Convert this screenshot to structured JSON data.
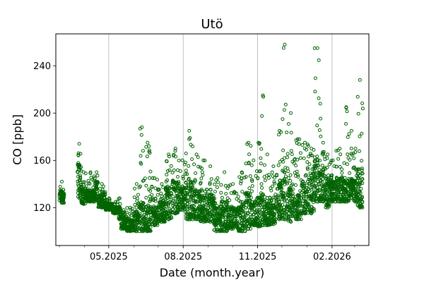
{
  "chart_data": {
    "type": "scatter",
    "title": "Utö",
    "xlabel": "Date (month.year)",
    "ylabel": "CO [ppb]",
    "x_units": "days since 01.03.2025",
    "xlim": [
      -4.4,
      382.5
    ],
    "ylim": [
      88,
      267
    ],
    "grid": "vertical lines at major x ticks",
    "marker_color": "#006400",
    "y_ticks": [
      120,
      160,
      200,
      240
    ],
    "x_ticks": [
      {
        "day": 61,
        "label": "05.2025"
      },
      {
        "day": 153,
        "label": "08.2025"
      },
      {
        "day": 245,
        "label": "11.2025"
      },
      {
        "day": 337,
        "label": "02.2026"
      }
    ],
    "x_minor_ticks_days": [
      0,
      31,
      61,
      92,
      122,
      153,
      184,
      214,
      245,
      275,
      306,
      337,
      365
    ],
    "series_bins_note": "[start_day, end_day, low_ppb, typical_ppb, high_ppb]",
    "series_bins": [
      [
        0,
        6,
        124,
        132,
        142
      ],
      [
        22,
        27,
        128,
        150,
        174
      ],
      [
        27,
        33,
        123,
        133,
        150
      ],
      [
        33,
        44,
        125,
        132,
        150
      ],
      [
        44,
        48,
        126,
        138,
        150
      ],
      [
        48,
        57,
        120,
        128,
        140
      ],
      [
        57,
        66,
        118,
        122,
        128
      ],
      [
        66,
        73,
        115,
        119,
        125
      ],
      [
        73,
        76,
        110,
        118,
        128
      ],
      [
        76,
        83,
        102,
        110,
        118
      ],
      [
        83,
        92,
        100,
        108,
        120
      ],
      [
        92,
        99,
        100,
        112,
        140
      ],
      [
        99,
        105,
        100,
        118,
        188
      ],
      [
        105,
        113,
        100,
        115,
        175
      ],
      [
        113,
        122,
        105,
        116,
        145
      ],
      [
        122,
        131,
        108,
        120,
        140
      ],
      [
        131,
        139,
        110,
        130,
        165
      ],
      [
        139,
        148,
        115,
        135,
        170
      ],
      [
        148,
        156,
        118,
        132,
        160
      ],
      [
        156,
        165,
        110,
        135,
        185
      ],
      [
        165,
        174,
        110,
        128,
        165
      ],
      [
        174,
        182,
        108,
        125,
        160
      ],
      [
        182,
        191,
        108,
        125,
        155
      ],
      [
        191,
        200,
        100,
        115,
        145
      ],
      [
        200,
        208,
        100,
        118,
        150
      ],
      [
        208,
        221,
        102,
        115,
        140
      ],
      [
        221,
        230,
        100,
        118,
        150
      ],
      [
        230,
        237,
        102,
        125,
        175
      ],
      [
        237,
        243,
        105,
        120,
        160
      ],
      [
        243,
        249,
        104,
        122,
        175
      ],
      [
        249,
        254,
        105,
        125,
        215
      ],
      [
        254,
        260,
        105,
        120,
        165
      ],
      [
        260,
        269,
        106,
        122,
        155
      ],
      [
        269,
        275,
        110,
        135,
        185
      ],
      [
        275,
        282,
        110,
        140,
        258
      ],
      [
        282,
        290,
        108,
        130,
        200
      ],
      [
        290,
        299,
        110,
        125,
        178
      ],
      [
        299,
        308,
        115,
        135,
        175
      ],
      [
        308,
        315,
        115,
        140,
        170
      ],
      [
        315,
        323,
        125,
        150,
        255
      ],
      [
        323,
        329,
        125,
        145,
        175
      ],
      [
        329,
        334,
        120,
        140,
        165
      ],
      [
        334,
        342,
        125,
        138,
        160
      ],
      [
        342,
        351,
        125,
        140,
        170
      ],
      [
        351,
        358,
        125,
        140,
        205
      ],
      [
        358,
        364,
        128,
        140,
        185
      ],
      [
        364,
        368,
        125,
        138,
        170
      ],
      [
        368,
        375,
        120,
        145,
        228
      ]
    ]
  }
}
